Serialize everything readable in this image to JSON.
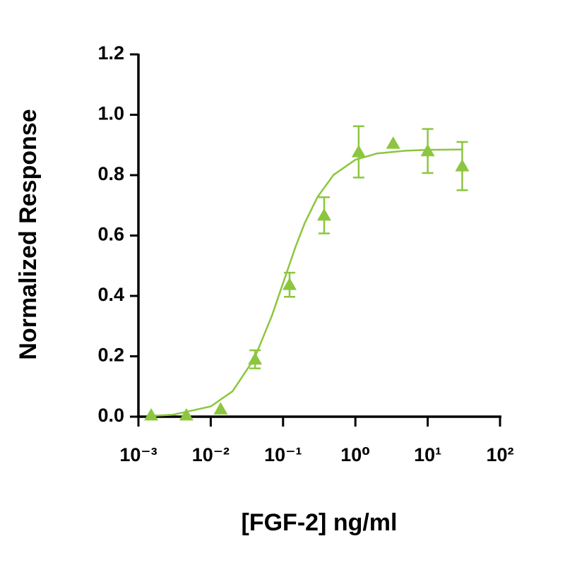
{
  "chart_data": {
    "type": "scatter",
    "xlabel": "[FGF-2] ng/ml",
    "ylabel": "Normalized Response",
    "xscale": "log",
    "xlim": [
      0.001,
      100
    ],
    "xticks": [
      {
        "value": 0.001,
        "label": "10⁻³"
      },
      {
        "value": 0.01,
        "label": "10⁻²"
      },
      {
        "value": 0.1,
        "label": "10⁻¹"
      },
      {
        "value": 1,
        "label": "10⁰"
      },
      {
        "value": 10,
        "label": "10¹"
      },
      {
        "value": 100,
        "label": "10²"
      }
    ],
    "ylim": [
      0,
      1.2
    ],
    "yticks": [
      {
        "value": 0,
        "label": "0.0"
      },
      0.2,
      0.4,
      0.6,
      0.8,
      {
        "value": 1,
        "label": "1.0"
      },
      1.2
    ],
    "series": [
      {
        "color": "#8cc63f",
        "x": [
          0.0015,
          0.0046,
          0.0137,
          0.041,
          0.123,
          0.37,
          1.11,
          3.33,
          10,
          30
        ],
        "values": [
          0.005,
          0.005,
          0.025,
          0.19,
          0.437,
          0.667,
          0.877,
          0.905,
          0.88,
          0.83
        ],
        "errors": [
          null,
          null,
          null,
          0.03,
          0.04,
          0.06,
          0.085,
          null,
          0.073,
          0.08
        ]
      }
    ],
    "curve": {
      "color": "#8cc63f",
      "x": [
        0.0015,
        0.003,
        0.01,
        0.02,
        0.04,
        0.07,
        0.1,
        0.15,
        0.2,
        0.3,
        0.5,
        1,
        2,
        5,
        10,
        30
      ],
      "values": [
        0.0025,
        0.0065,
        0.0339,
        0.0841,
        0.192,
        0.334,
        0.4425,
        0.565,
        0.642,
        0.728,
        0.801,
        0.851,
        0.872,
        0.881,
        0.884,
        0.885
      ]
    }
  }
}
